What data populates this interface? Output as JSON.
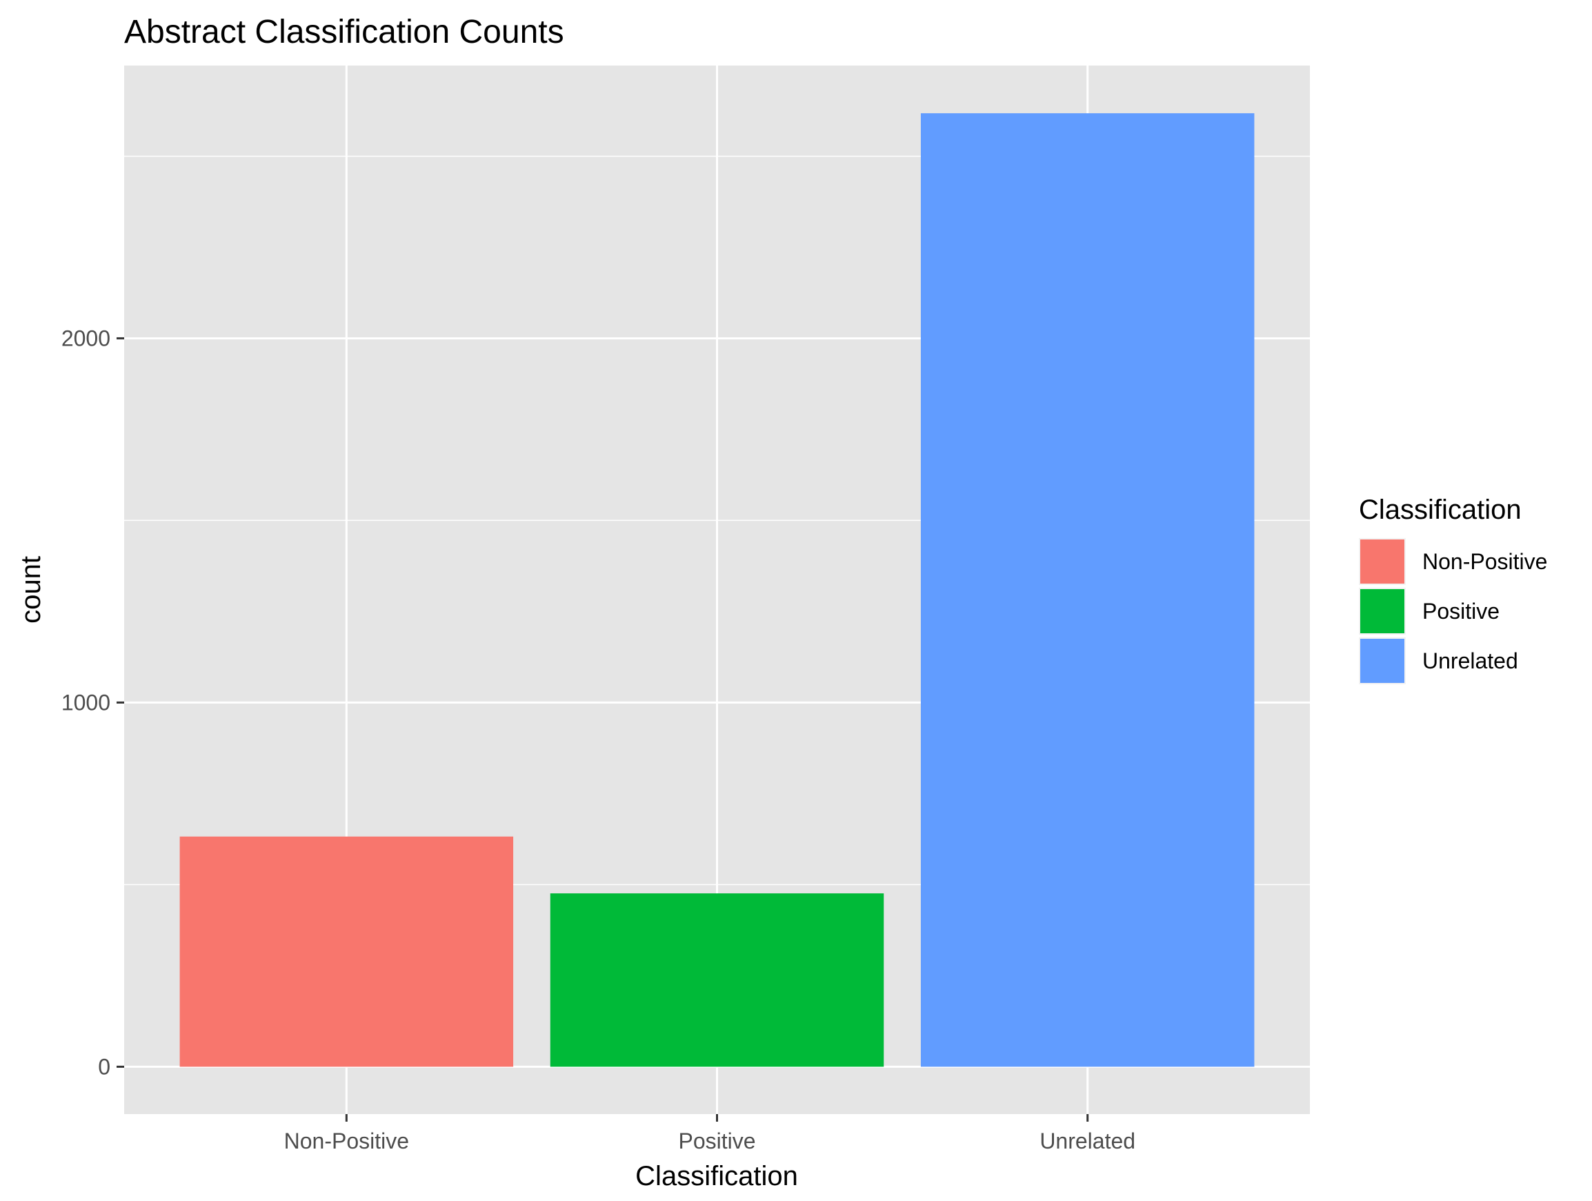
{
  "chart_data": {
    "type": "bar",
    "title": "Abstract Classification Counts",
    "xlabel": "Classification",
    "ylabel": "count",
    "categories": [
      "Non-Positive",
      "Positive",
      "Unrelated"
    ],
    "values": [
      632,
      476,
      2618
    ],
    "colors": [
      "#F8766D",
      "#00BA38",
      "#619CFF"
    ],
    "ylim": [
      -130,
      2749
    ],
    "yticks": [
      0,
      1000,
      2000
    ],
    "y_tick_labels": [
      "0",
      "1000",
      "2000"
    ],
    "y_minor_ticks": [
      500,
      1500,
      2500
    ],
    "grid": true,
    "panel_background": "#E5E5E5",
    "legend": {
      "title": "Classification",
      "position": "right",
      "entries": [
        "Non-Positive",
        "Positive",
        "Unrelated"
      ]
    }
  }
}
